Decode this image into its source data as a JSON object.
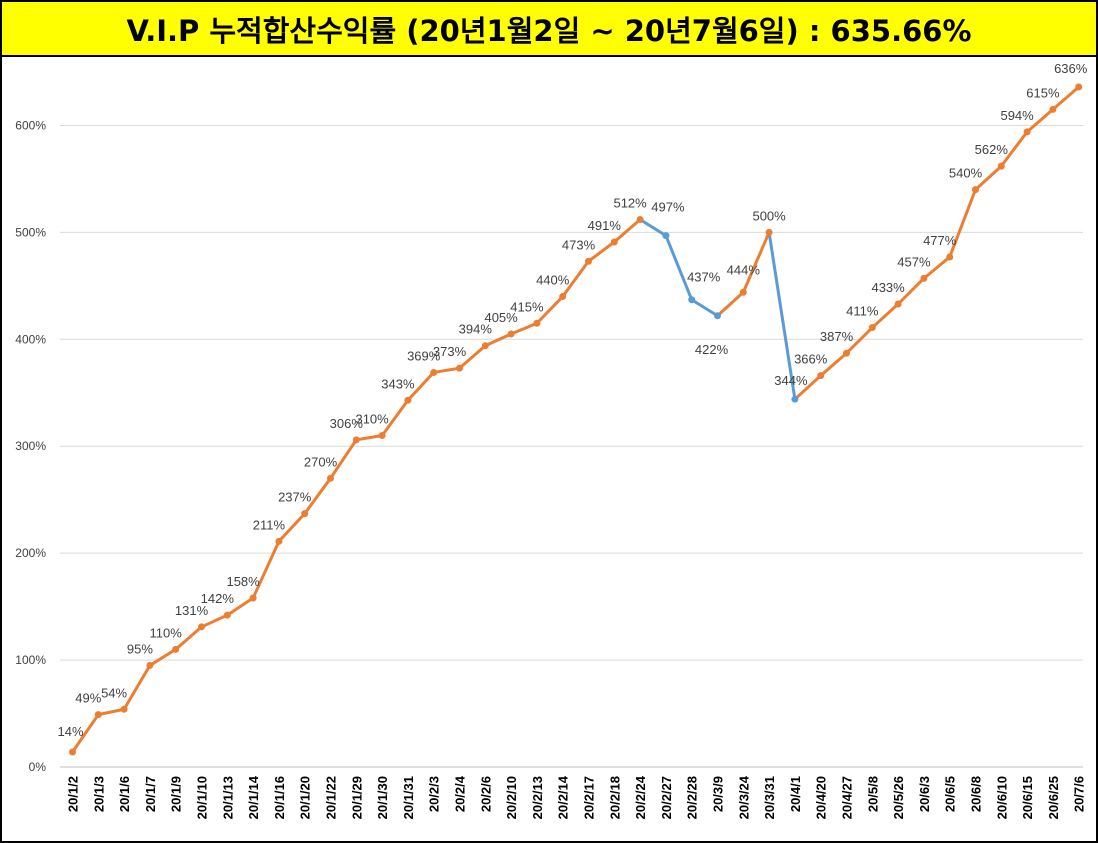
{
  "chart_data": {
    "type": "line",
    "title": "V.I.P 누적합산수익률 (20년1월2일 ~ 20년7월6일) : 635.66%",
    "xlabel": "",
    "ylabel": "",
    "ylim": [
      0,
      650
    ],
    "yticks": [
      0,
      100,
      200,
      300,
      400,
      500,
      600
    ],
    "ytick_labels": [
      "0%",
      "100%",
      "200%",
      "300%",
      "400%",
      "500%",
      "600%"
    ],
    "grid": true,
    "legend": "none",
    "categories": [
      "20/1/2",
      "20/1/3",
      "20/1/6",
      "20/1/7",
      "20/1/9",
      "20/1/10",
      "20/1/13",
      "20/1/14",
      "20/1/16",
      "20/1/20",
      "20/1/22",
      "20/1/29",
      "20/1/30",
      "20/1/31",
      "20/2/3",
      "20/2/4",
      "20/2/6",
      "20/2/10",
      "20/2/13",
      "20/2/14",
      "20/2/17",
      "20/2/18",
      "20/2/24",
      "20/2/27",
      "20/2/28",
      "20/3/9",
      "20/3/24",
      "20/3/31",
      "20/4/1",
      "20/4/20",
      "20/4/27",
      "20/5/8",
      "20/5/26",
      "20/6/3",
      "20/6/5",
      "20/6/8",
      "20/6/10",
      "20/6/15",
      "20/6/25",
      "20/7/6"
    ],
    "values": [
      14,
      49,
      54,
      95,
      110,
      131,
      142,
      158,
      211,
      237,
      270,
      306,
      310,
      343,
      369,
      373,
      394,
      405,
      415,
      440,
      473,
      491,
      512,
      497,
      437,
      422,
      444,
      500,
      344,
      366,
      387,
      411,
      433,
      457,
      477,
      540,
      562,
      594,
      615,
      636
    ],
    "labels": [
      "14%",
      "49%",
      "54%",
      "95%",
      "110%",
      "131%",
      "142%",
      "158%",
      "211%",
      "237%",
      "270%",
      "306%",
      "310%",
      "343%",
      "369%",
      "373%",
      "394%",
      "405%",
      "415%",
      "440%",
      "473%",
      "491%",
      "512%",
      "497%",
      "437%",
      "422%",
      "444%",
      "500%",
      "344%",
      "366%",
      "387%",
      "411%",
      "433%",
      "457%",
      "477%",
      "540%",
      "562%",
      "594%",
      "615%",
      "636%"
    ],
    "colors": {
      "up": "#ED7D31",
      "down": "#5B9BD5",
      "grid": "#D9D9D9",
      "axis": "#BFBFBF",
      "text": "#404040",
      "title_bg": "#FFFF00"
    }
  }
}
